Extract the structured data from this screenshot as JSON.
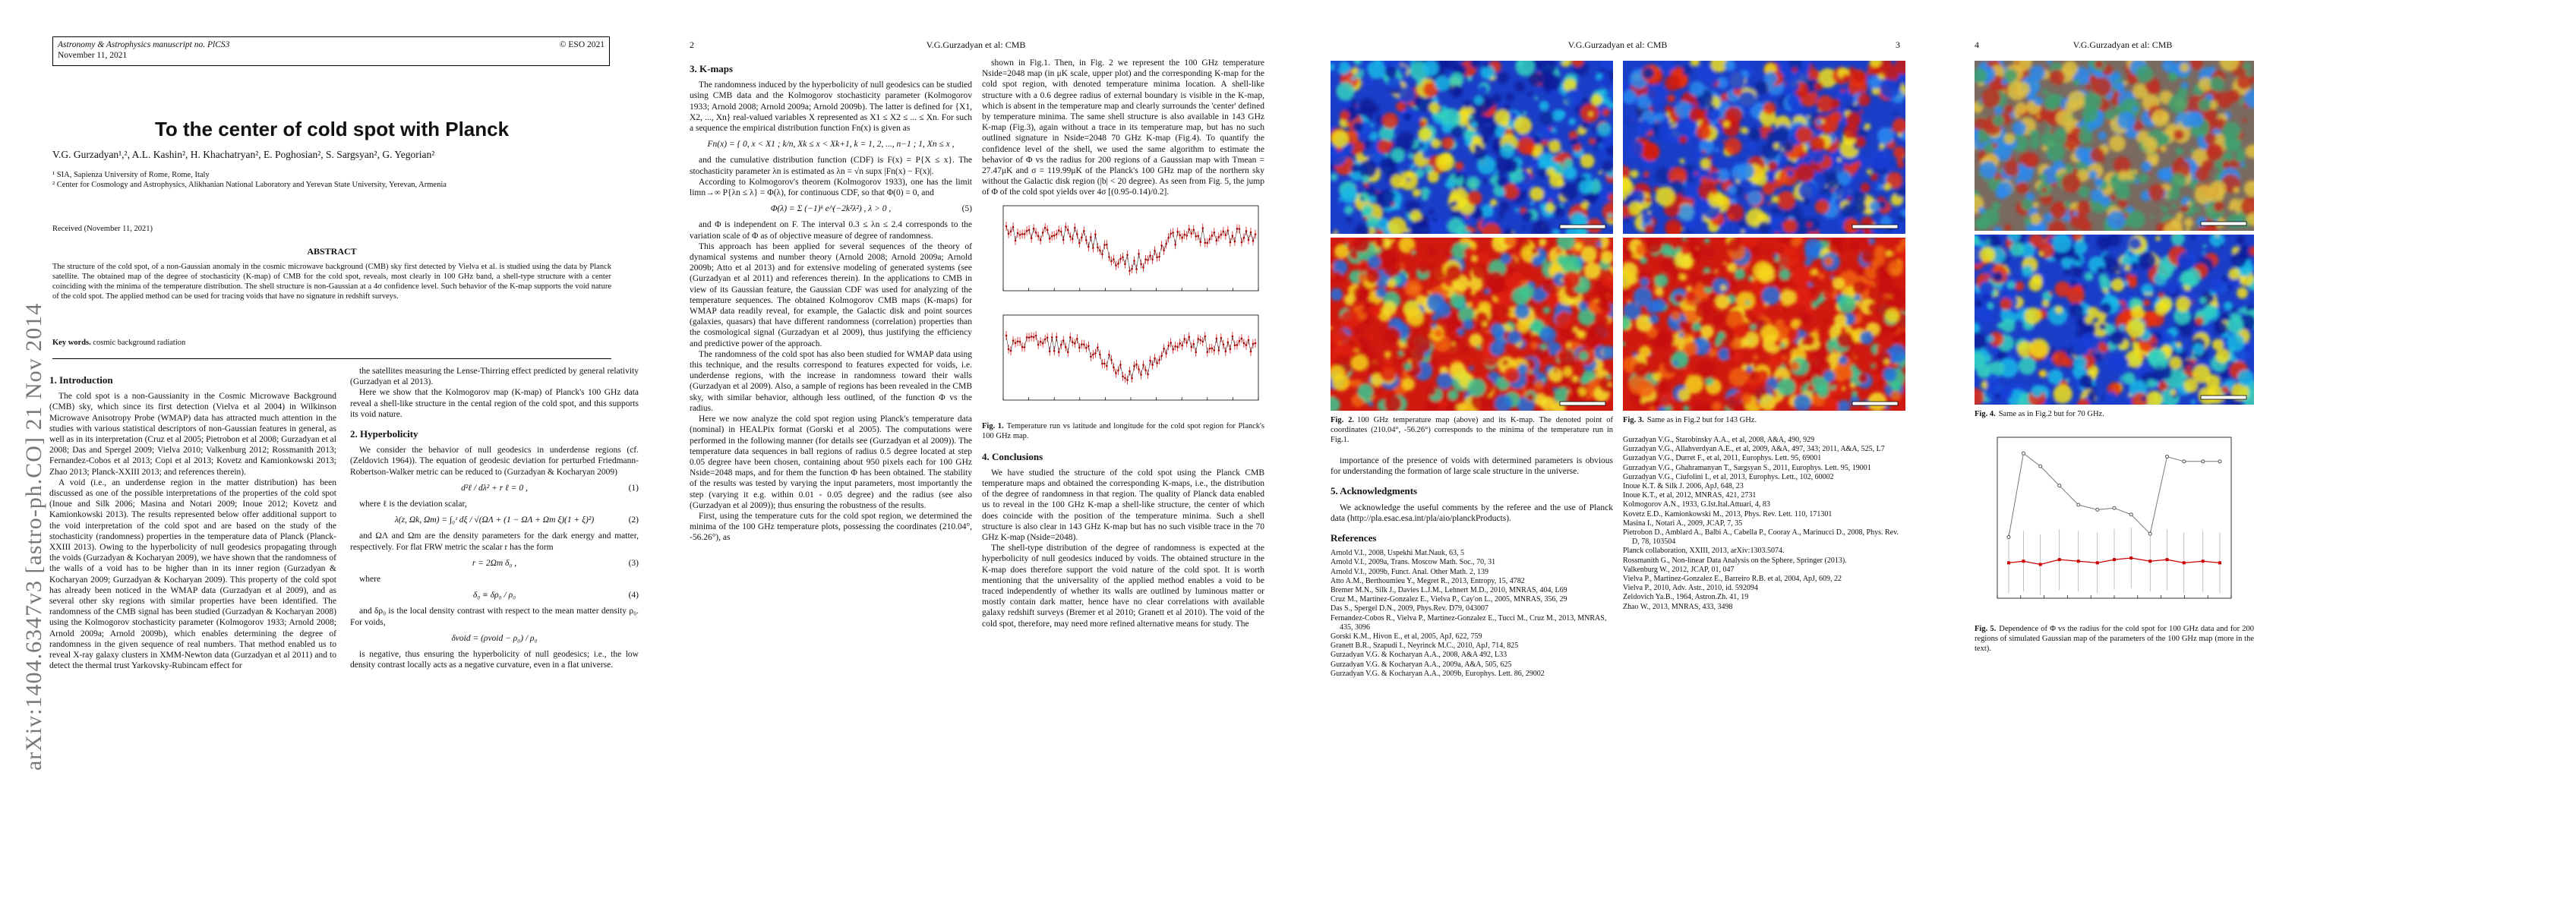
{
  "pages": [
    {
      "header": {
        "journal": "Astronomy & Astrophysics manuscript no. PlCS3",
        "date": "November 11, 2021",
        "copyright": "© ESO 2021"
      },
      "arxiv": "arXiv:1404.6347v3  [astro-ph.CO]  21 Nov 2014",
      "title": "To the center of cold spot with Planck",
      "authors": "V.G. Gurzadyan¹,², A.L. Kashin², H. Khachatryan², E. Poghosian², S. Sargsyan², G. Yegorian²",
      "affiliations": [
        "¹ SIA, Sapienza University of Rome, Rome, Italy",
        "² Center for Cosmology and Astrophysics, Alikhanian National Laboratory and Yerevan State University, Yerevan, Armenia"
      ],
      "received": "Received (November 11, 2021)",
      "abstract_heading": "ABSTRACT",
      "abstract": "The structure of the cold spot, of a non-Gaussian anomaly in the cosmic microwave background (CMB) sky first detected by Vielva et al. is studied using the data by Planck satellite. The obtained map of the degree of stochasticity (K-map) of CMB for the cold spot, reveals, most clearly in 100 GHz band, a shell-type structure with a center coinciding with the minima of the temperature distribution. The shell structure is non-Gaussian at a 4σ confidence level. Such behavior of the K-map supports the void nature of the cold spot. The applied method can be used for tracing voids that have no signature in redshift surveys.",
      "keywords": {
        "label": "Key words.",
        "text": "cosmic background radiation"
      },
      "columns": [
        {
          "blocks": [
            {
              "heading": "1. Introduction"
            },
            {
              "text": "The cold spot is a non-Gaussianity in the Cosmic Microwave Background (CMB) sky, which since its first detection (Vielva et al 2004) in Wilkinson Microwave Anisotropy Probe (WMAP) data has attracted much attention in the studies with various statistical descriptors of non-Gaussian features in general, as well as in its interpretation (Cruz et al 2005; Pietrobon et al 2008; Gurzadyan et al 2008; Das and Spergel 2009; Vielva 2010; Valkenburg 2012; Rossmanith 2013; Fernandez-Cobos et al 2013; Copi et al 2013; Kovetz and Kamionkowski 2013; Zhao 2013; Planck-XXIII 2013; and references therein)."
            },
            {
              "text": "A void (i.e., an underdense region in the matter distribution) has been discussed as one of the possible interpretations of the properties of the cold spot (Inoue and Silk 2006; Masina and Notari 2009; Inoue 2012; Kovetz and Kamionkowski 2013). The results represented below offer additional support to the void interpretation of the cold spot and are based on the study of the stochasticity (randomness) properties in the temperature data of Planck (Planck-XXIII 2013). Owing to the hyperbolicity of null geodesics propagating through the voids (Gurzadyan & Kocharyan 2009), we have shown that the randomness of the walls of a void has to be higher than in its inner region (Gurzadyan & Kocharyan 2009; Gurzadyan & Kocharyan 2009). This property of the cold spot has already been noticed in the WMAP data (Gurzadyan et al 2009), and as several other sky regions with similar properties have been identified. The randomness of the CMB signal has been studied (Gurzadyan & Kocharyan 2008) using the Kolmogorov stochasticity parameter (Kolmogorov 1933; Arnold 2008; Arnold 2009a; Arnold 2009b), which enables determining the degree of randomness in the given sequence of real numbers. That method enabled us to reveal X-ray galaxy clusters in XMM-Newton data (Gurzadyan et al 2011) and to detect the thermal trust Yarkovsky-Rubincam effect for"
            }
          ]
        },
        {
          "blocks": [
            {
              "text": "the satellites measuring the Lense-Thirring effect predicted by general relativity (Gurzadyan et al 2013)."
            },
            {
              "text": "Here we show that the Kolmogorov map (K-map) of Planck's 100 GHz data reveal a shell-like structure in the cental region of the cold spot, and this supports its void nature."
            },
            {
              "heading": "2. Hyperbolicity"
            },
            {
              "text": "We consider the behavior of null geodesics in underdense regions (cf. (Zeldovich 1964)). The equation of geodesic deviation for perturbed Friedmann-Robertson-Walker metric can be reduced to (Gurzadyan & Kocharyan 2009)"
            },
            {
              "equation": "d²ℓ / dλ² + r ℓ = 0 ,",
              "number": "(1)"
            },
            {
              "text": "where ℓ is the deviation scalar,"
            },
            {
              "equation": "λ(z, Ωk, Ωm) = ∫₀ᶻ dξ / √(ΩΛ + (1 − ΩΛ + Ωm ξ)(1 + ξ)²)",
              "number": "(2)"
            },
            {
              "text": "and ΩΛ and Ωm are the density parameters for the dark energy and matter, respectively. For flat FRW metric the scalar r has the form"
            },
            {
              "equation": "r = 2Ωm δ₀ ,",
              "number": "(3)"
            },
            {
              "text": "where"
            },
            {
              "equation": "δ₀ ≡ δρ₀ / ρ₀",
              "number": "(4)"
            },
            {
              "text": "and δρ₀ is the local density contrast with respect to the mean matter density ρ₀. For voids,"
            },
            {
              "equation": "δvoid = (ρvoid − ρ₀) / ρ₀"
            },
            {
              "text": "is negative, thus ensuring the hyperbolicity of null geodesics; i.e., the low density contrast locally acts as a negative curvature, even in a flat universe."
            }
          ]
        }
      ]
    },
    {
      "header": {
        "page": "2",
        "running_title": "V.G.Gurzadyan et al: CMB"
      },
      "columns": [
        {
          "blocks": [
            {
              "heading": "3. K-maps"
            },
            {
              "text": "The randomness induced by the hyperbolicity of null geodesics can be studied using CMB data and the Kolmogorov stochasticity parameter (Kolmogorov 1933; Arnold 2008; Arnold 2009a; Arnold 2009b). The latter is defined for {X1, X2, ..., Xn} real-valued variables X represented as X1 ≤ X2 ≤ ... ≤ Xn. For such a sequence the empirical distribution function Fn(x) is given as"
            },
            {
              "equation": "Fn(x) = { 0, x < X1 ; k/n, Xk ≤ x < Xk+1, k = 1, 2, ..., n−1 ; 1, Xn ≤ x ,"
            },
            {
              "text": "and the cumulative distribution function (CDF) is F(x) = P{X ≤ x}. The stochasticity parameter λn is estimated as λn = √n supx |Fn(x) − F(x)|."
            },
            {
              "text": "According to Kolmogorov's theorem (Kolmogorov 1933), one has the limit limn→∞ P{λn ≤ λ} = Φ(λ), for continuous CDF, so that Φ(0) = 0, and"
            },
            {
              "equation": "Φ(λ) = Σ (−1)ᵏ e^(−2k²λ²) ,  λ > 0 ,",
              "number": "(5)"
            },
            {
              "text": "and Φ is independent on F. The interval 0.3 ≤ λn ≤ 2.4 corresponds to the variation scale of Φ as of objective measure of degree of randomness."
            },
            {
              "text": "This approach has been applied for several sequences of the theory of dynamical systems and number theory (Arnold 2008; Arnold 2009a; Arnold 2009b; Atto et al 2013) and for extensive modeling of generated systems (see (Gurzadyan et al 2011) and references therein). In the applications to CMB in view of its Gaussian feature, the Gaussian CDF was used for analyzing of the temperature sequences. The obtained Kolmogorov CMB maps (K-maps) for WMAP data readily reveal, for example, the Galactic disk and point sources (galaxies, quasars) that have different randomness (correlation) properties than the cosmological signal (Gurzadyan et al 2009), thus justifying the efficiency and predictive power of the approach."
            },
            {
              "text": "The randomness of the cold spot has also been studied for WMAP data using this technique, and the results correspond to features expected for voids, i.e. underdense regions, with the increase in randomness toward their walls (Gurzadyan et al 2009). Also, a sample of regions has been revealed in the CMB sky, with similar behavior, although less outlined, of the function Φ vs the radius."
            },
            {
              "text": "Here we now analyze the cold spot region using Planck's temperature data (nominal) in HEALPix format (Gorski et al 2005). The computations were performed in the following manner (for details see (Gurzadyan et al 2009)). The temperature data sequences in ball regions of radius 0.5 degree located at step 0.05 degree have been chosen, containing about 950 pixels each for 100 GHz Nside=2048 maps, and for them the function Φ has been obtained. The stability of the results was tested by varying the input parameters, most importantly the step (varying it e.g. within 0.01 - 0.05 degree) and the radius (see also (Gurzadyan et al 2009)); thus ensuring the robustness of the results."
            },
            {
              "text": "First, using the temperature cuts for the cold spot region, we determined the minima of the 100 GHz temperature plots, possessing the coordinates (210.04°, -56.26°), as"
            }
          ]
        },
        {
          "blocks": [
            {
              "text": "shown in Fig.1. Then, in Fig. 2 we represent the 100 GHz temperature Nside=2048 map (in μK scale, upper plot) and the corresponding K-map for the cold spot region, with denoted temperature minima location. A shell-like structure with a 0.6 degree radius of external boundary is visible in the K-map, which is absent in the temperature map and clearly surrounds the 'center' defined by temperature minima. The same shell structure is also available in 143 GHz K-map (Fig.3), again without a trace in its temperature map, but has no such outlined signature in Nside=2048 70 GHz K-map (Fig.4). To quantify the confidence level of the shell, we used the same algorithm to estimate the behavior of Φ vs the radius for 200 regions of a Gaussian map with Tmean = 27.47μK and σ = 119.99μK of the Planck's 100 GHz map of the northern sky without the Galactic disk region (|b| < 20 degree). As seen from Fig. 5, the jump of Φ of the cold spot yields over 4σ [(0.95-0.14)/0.2]."
            },
            {
              "label": "Fig. 1.",
              "caption": "Temperature run vs latitude and longitude for the cold spot region for Planck's 100 GHz map."
            },
            {
              "heading": "4. Conclusions"
            },
            {
              "text": "We have studied the structure of the cold spot using the Planck CMB temperature maps and obtained the corresponding K-maps, i.e., the distribution of the degree of randomness in that region. The quality of Planck data enabled us to reveal in the 100 GHz K-map a shell-like structure, the center of which does coincide with the position of the temperature minima. Such a shell structure is also clear in 143 GHz K-map but has no such visible trace in the 70 GHz K-map (Nside=2048)."
            },
            {
              "text": "The shell-type distribution of the degree of randomness is expected at the hyperbolicity of null geodesics induced by voids. The obtained structure in the K-map does therefore support the void nature of the cold spot. It is worth mentioning that the universality of the applied method enables a void to be traced independently of whether its walls are outlined by luminous matter or mostly contain dark matter, hence have no clear correlations with available galaxy redshift surveys (Bremer et al 2010; Granett et al 2010). The void of the cold spot, therefore, may need more refined alternative means for study. The"
            }
          ]
        }
      ]
    },
    {
      "header": {
        "page": "3",
        "running_title": "V.G.Gurzadyan et al: CMB"
      },
      "columns": [
        {
          "blocks": [
            {
              "label": "Fig. 2.",
              "caption": "100 GHz temperature map (above) and its K-map. The denoted point of coordinates (210.04°, -56.26°) corresponds to the minima of the temperature run in Fig.1."
            },
            {
              "text": "importance of the presence of voids with determined parameters is obvious for understanding the formation of large scale structure in the universe."
            },
            {
              "heading": "5. Acknowledgments"
            },
            {
              "text": "We acknowledge the useful comments by the referee and the use of Planck data (http://pla.esac.esa.int/pla/aio/planckProducts)."
            },
            {
              "heading": "References"
            },
            {
              "references": [
                "Arnold V.I., 2008, Uspekhi Mat.Nauk, 63, 5",
                "Arnold V.I., 2009a, Trans. Moscow Math. Soc., 70, 31",
                "Arnold V.I., 2009b, Funct. Anal. Other Math. 2, 139",
                "Atto A.M., Berthoumieu Y., Megret R., 2013, Entropy, 15, 4782",
                "Bremer M.N., Silk J., Davies L.J.M., Lehnert M.D., 2010, MNRAS, 404, L69",
                "Cruz M., Martinez-Gonzalez E., Vielva P., Cay'on L., 2005, MNRAS, 356, 29",
                "Das S., Spergel D.N., 2009, Phys.Rev. D79, 043007",
                "Fernandez-Cobos R., Vielva P., Martinez-Gonzalez E., Tucci M., Cruz M., 2013, MNRAS, 435, 3096",
                "Gorski K.M., Hivon E., et al, 2005, ApJ, 622, 759",
                "Granett B.R., Szapudi I., Neyrinck M.C., 2010, ApJ, 714, 825",
                "Gurzadyan V.G. & Kocharyan A.A., 2008, A&A 492, L33",
                "Gurzadyan V.G. & Kocharyan A.A., 2009a, A&A, 505, 625",
                "Gurzadyan V.G. & Kocharyan A.A., 2009b, Europhys. Lett. 86, 29002"
              ]
            }
          ]
        },
        {
          "blocks": [
            {
              "label": "Fig. 3.",
              "caption": "Same as in Fig.2 but for 143 GHz."
            },
            {
              "references": [
                "Gurzadyan V.G., Starobinsky A.A., et al, 2008, A&A, 490, 929",
                "Gurzadyan V.G., Allahverdyan A.E., et al, 2009, A&A, 497, 343; 2011, A&A, 525, L7",
                "Gurzadyan V.G., Durret F., et al, 2011, Europhys. Lett. 95, 69001",
                "Gurzadyan V.G., Ghahramanyan T., Sargsyan S., 2011, Europhys. Lett. 95, 19001",
                "Gurzadyan V.G., Ciufolini I., et al, 2013, Europhys. Lett., 102, 60002",
                "Inoue K.T. & Silk J. 2006, ApJ, 648, 23",
                "Inoue K.T., et al, 2012, MNRAS, 421, 2731",
                "Kolmogorov A.N., 1933, G.Ist.Ital.Attuari, 4, 83",
                "Kovetz E.D., Kamionkowski M., 2013, Phys. Rev. Lett. 110, 171301",
                "Masina I., Notari A., 2009, JCAP, 7, 35",
                "Pietrobon D., Amblard A., Balbi A., Cabella P., Cooray A., Marinucci D., 2008, Phys. Rev. D, 78, 103504",
                "Planck collaboration, XXIII, 2013, arXiv:1303.5074.",
                "Rossmanith G., Non-linear Data Analysis on the Sphere, Springer (2013).",
                "Valkenburg W., 2012, JCAP, 01, 047",
                "Vielva P., Martinez-Gonzalez E., Barreiro R.B. et al, 2004, ApJ, 609, 22",
                "Vielva P., 2010, Adv. Astr., 2010, id. 592094",
                "Zeldovich Ya.B., 1964, Astron.Zh. 41, 19",
                "Zhao W., 2013, MNRAS, 433, 3498"
              ]
            }
          ]
        }
      ]
    },
    {
      "header": {
        "page": "4",
        "running_title": "V.G.Gurzadyan et al: CMB"
      },
      "columns": [
        {
          "blocks": [
            {
              "label": "Fig. 4.",
              "caption": "Same as in Fig.2 but for 70 GHz."
            },
            {
              "label": "Fig. 5.",
              "caption": "Dependence of Φ vs the radius for the cold spot for 100 GHz data and for 200 regions of simulated Gaussian map of the parameters of the 100 GHz map (more in the text)."
            }
          ]
        }
      ]
    }
  ]
}
